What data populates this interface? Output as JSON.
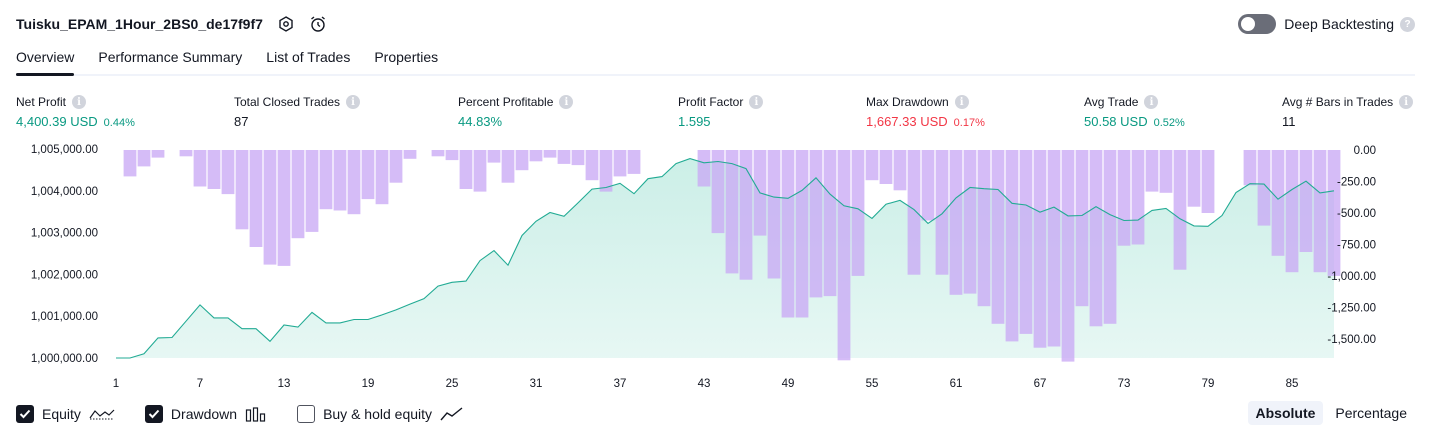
{
  "header": {
    "strategy_name": "Tuisku_EPAM_1Hour_2BS0_de17f9f7",
    "deep_backtesting_label": "Deep Backtesting",
    "deep_backtesting_on": false
  },
  "tabs": [
    {
      "label": "Overview",
      "active": true
    },
    {
      "label": "Performance Summary",
      "active": false
    },
    {
      "label": "List of Trades",
      "active": false
    },
    {
      "label": "Properties",
      "active": false
    }
  ],
  "stats": [
    {
      "label": "Net Profit",
      "value": "4,400.39 USD",
      "percent": "0.44%",
      "tone": "green"
    },
    {
      "label": "Total Closed Trades",
      "value": "87",
      "percent": "",
      "tone": "dark"
    },
    {
      "label": "Percent Profitable",
      "value": "44.83%",
      "percent": "",
      "tone": "green"
    },
    {
      "label": "Profit Factor",
      "value": "1.595",
      "percent": "",
      "tone": "green"
    },
    {
      "label": "Max Drawdown",
      "value": "1,667.33 USD",
      "percent": "0.17%",
      "tone": "red"
    },
    {
      "label": "Avg Trade",
      "value": "50.58 USD",
      "percent": "0.52%",
      "tone": "green"
    },
    {
      "label": "Avg # Bars in Trades",
      "value": "11",
      "percent": "",
      "tone": "dark"
    }
  ],
  "legend": {
    "equity_label": "Equity",
    "drawdown_label": "Drawdown",
    "buyhold_label": "Buy & hold equity",
    "equity_checked": true,
    "drawdown_checked": true,
    "buyhold_checked": false
  },
  "modes": {
    "absolute_label": "Absolute",
    "percentage_label": "Percentage",
    "active": "absolute"
  },
  "colors": {
    "equity_line": "#22ab94",
    "equity_fill": "#c9eee6",
    "drawdown_bar": "#c9a9f5",
    "green": "#089981",
    "red": "#f23645"
  },
  "chart_data": {
    "type": "area",
    "left_axis": {
      "ticks": [
        "1,005,000.00",
        "1,004,000.00",
        "1,003,000.00",
        "1,002,000.00",
        "1,001,000.00",
        "1,000,000.00"
      ],
      "min": 1000000,
      "max": 1005000
    },
    "right_axis": {
      "ticks": [
        "0.00",
        "-250.00",
        "-500.00",
        "-750.00",
        "-1,000.00",
        "-1,250.00",
        "-1,500.00"
      ],
      "min": -1667.33,
      "max": 0
    },
    "x_ticks": [
      "1",
      "7",
      "13",
      "19",
      "25",
      "31",
      "37",
      "43",
      "49",
      "55",
      "61",
      "67",
      "73",
      "79",
      "85"
    ],
    "x": [
      1,
      2,
      3,
      4,
      5,
      6,
      7,
      8,
      9,
      10,
      11,
      12,
      13,
      14,
      15,
      16,
      17,
      18,
      19,
      20,
      21,
      22,
      23,
      24,
      25,
      26,
      27,
      28,
      29,
      30,
      31,
      32,
      33,
      34,
      35,
      36,
      37,
      38,
      39,
      40,
      41,
      42,
      43,
      44,
      45,
      46,
      47,
      48,
      49,
      50,
      51,
      52,
      53,
      54,
      55,
      56,
      57,
      58,
      59,
      60,
      61,
      62,
      63,
      64,
      65,
      66,
      67,
      68,
      69,
      70,
      71,
      72,
      73,
      74,
      75,
      76,
      77,
      78,
      79,
      80,
      81,
      82,
      83,
      84,
      85,
      86,
      87,
      88
    ],
    "series": [
      {
        "name": "Equity",
        "values": [
          1000000,
          1000000,
          1000100,
          1000480,
          1000490,
          1000880,
          1001270,
          1000960,
          1000960,
          1000700,
          1000700,
          1000400,
          1000790,
          1000740,
          1001090,
          1000840,
          1000840,
          1000920,
          1000920,
          1001030,
          1001150,
          1001290,
          1001420,
          1001720,
          1001810,
          1001840,
          1002330,
          1002570,
          1002220,
          1002930,
          1003270,
          1003480,
          1003390,
          1003710,
          1004040,
          1004080,
          1004180,
          1003930,
          1004290,
          1004340,
          1004650,
          1004770,
          1004670,
          1004700,
          1004650,
          1004530,
          1003950,
          1003850,
          1003820,
          1004010,
          1004310,
          1003920,
          1003640,
          1003570,
          1003340,
          1003680,
          1003770,
          1003550,
          1003220,
          1003450,
          1003830,
          1004080,
          1004050,
          1004030,
          1003700,
          1003660,
          1003490,
          1003610,
          1003400,
          1003410,
          1003620,
          1003430,
          1003290,
          1003300,
          1003530,
          1003580,
          1003330,
          1003160,
          1003150,
          1003410,
          1003960,
          1004170,
          1004160,
          1003800,
          1004030,
          1004230,
          1003950,
          1004000
        ]
      },
      {
        "name": "Drawdown",
        "values": [
          0,
          -210,
          -130,
          -60,
          0,
          -50,
          -290,
          -310,
          -350,
          -630,
          -770,
          -910,
          -920,
          -700,
          -650,
          -470,
          -480,
          -510,
          -390,
          -430,
          -260,
          -70,
          0,
          -50,
          -80,
          -310,
          -330,
          -100,
          -260,
          -160,
          -90,
          -60,
          -110,
          -120,
          -240,
          -330,
          -210,
          -190,
          0,
          0,
          0,
          0,
          -290,
          -660,
          -980,
          -1030,
          -680,
          -1020,
          -1330,
          -1330,
          -1170,
          -1160,
          -1670,
          -1000,
          -240,
          -270,
          -320,
          -990,
          -560,
          -990,
          -1150,
          -1140,
          -1240,
          -1380,
          -1520,
          -1460,
          -1570,
          -1560,
          -1680,
          -1240,
          -1400,
          -1380,
          -760,
          -750,
          -330,
          -340,
          -950,
          -450,
          -500,
          0,
          0,
          -280,
          -600,
          -840,
          -970,
          -810,
          -970,
          -1000
        ]
      }
    ]
  }
}
